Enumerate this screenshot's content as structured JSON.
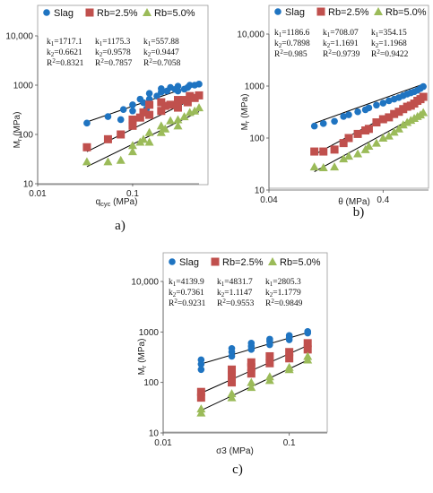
{
  "colors": {
    "slag": "#1f74c1",
    "rb25": "#c0504d",
    "rb50": "#9bbb59",
    "fit": "#000000"
  },
  "legend": [
    "Slag",
    "Rb=2.5%",
    "Rb=5.0%"
  ],
  "chart_data": [
    {
      "type": "scatter",
      "caption": "a)",
      "xlabel": "q_cyc (MPa)",
      "ylabel": "M_r (MPa)",
      "xscale": "log",
      "yscale": "log",
      "xlim": [
        0.01,
        0.5
      ],
      "ylim": [
        10,
        10000
      ],
      "xticks": [
        {
          "v": 0.01,
          "t": "0.01"
        },
        {
          "v": 0.1,
          "t": "0.1"
        }
      ],
      "yticks": [
        {
          "v": 10,
          "t": "10"
        },
        {
          "v": 100,
          "t": "100"
        },
        {
          "v": 1000,
          "t": "1000"
        },
        {
          "v": 10000,
          "t": "10,000"
        }
      ],
      "coefficients": [
        [
          "k1=1717.1",
          "k2=0.6621",
          "R2=0.8321"
        ],
        [
          "k1=1175.3",
          "k2=0.9578",
          "R2=0.7857"
        ],
        [
          "k1=557.88",
          "k2=0.9447",
          "R2=0.7058"
        ]
      ],
      "series": [
        {
          "name": "Slag",
          "marker": "circle",
          "fit": {
            "k1": 1717.1,
            "k2": 0.6621
          },
          "x": [
            0.033,
            0.055,
            0.075,
            0.1,
            0.1,
            0.12,
            0.15,
            0.15,
            0.2,
            0.2,
            0.25,
            0.3,
            0.3,
            0.35,
            0.4,
            0.45,
            0.08,
            0.13,
            0.18,
            0.28,
            0.38,
            0.5,
            0.23,
            0.14
          ],
          "y": [
            170,
            230,
            200,
            400,
            300,
            520,
            520,
            680,
            720,
            850,
            900,
            950,
            760,
            830,
            1000,
            1000,
            320,
            440,
            600,
            820,
            900,
            1050,
            760,
            330
          ]
        },
        {
          "name": "Rb=2.5%",
          "marker": "square",
          "fit": {
            "k1": 1175.3,
            "k2": 0.9578
          },
          "x": [
            0.033,
            0.055,
            0.075,
            0.1,
            0.1,
            0.13,
            0.15,
            0.15,
            0.2,
            0.2,
            0.25,
            0.3,
            0.3,
            0.35,
            0.4,
            0.45,
            0.5,
            0.12,
            0.22,
            0.38
          ],
          "y": [
            55,
            80,
            100,
            200,
            150,
            280,
            250,
            400,
            300,
            450,
            400,
            500,
            350,
            500,
            600,
            550,
            620,
            220,
            380,
            450
          ]
        },
        {
          "name": "Rb=5.0%",
          "marker": "triangle",
          "fit": {
            "k1": 557.88,
            "k2": 0.9447
          },
          "x": [
            0.033,
            0.055,
            0.075,
            0.1,
            0.1,
            0.13,
            0.15,
            0.15,
            0.2,
            0.2,
            0.25,
            0.3,
            0.3,
            0.35,
            0.4,
            0.45,
            0.5,
            0.12,
            0.22
          ],
          "y": [
            28,
            28,
            30,
            60,
            45,
            80,
            110,
            70,
            150,
            110,
            190,
            200,
            150,
            230,
            280,
            300,
            350,
            70,
            130
          ]
        }
      ]
    },
    {
      "type": "scatter",
      "caption": "b)",
      "xlabel": "θ (MPa)",
      "ylabel": "M_r (MPa)",
      "xscale": "log",
      "yscale": "log",
      "xlim": [
        0.04,
        1.0
      ],
      "ylim": [
        10,
        10000
      ],
      "xticks": [
        {
          "v": 0.04,
          "t": "0.04"
        },
        {
          "v": 0.4,
          "t": "0.4"
        }
      ],
      "yticks": [
        {
          "v": 10,
          "t": "10"
        },
        {
          "v": 100,
          "t": "100"
        },
        {
          "v": 1000,
          "t": "1000"
        },
        {
          "v": 10000,
          "t": "10,000"
        }
      ],
      "coefficients": [
        [
          "k1=1186.6",
          "k2=0.7898",
          "R2=0.985"
        ],
        [
          "k1=708.07",
          "k2=1.1691",
          "R2=0.9739"
        ],
        [
          "k1=354.15",
          "k2=1.1968",
          "R2=0.9422"
        ]
      ],
      "series": [
        {
          "name": "Slag",
          "marker": "circle",
          "fit": {
            "k1": 1186.6,
            "k2": 0.7898
          },
          "x": [
            0.1,
            0.12,
            0.15,
            0.18,
            0.2,
            0.24,
            0.28,
            0.3,
            0.35,
            0.4,
            0.45,
            0.5,
            0.55,
            0.6,
            0.65,
            0.7,
            0.75,
            0.8,
            0.85,
            0.9
          ],
          "y": [
            170,
            190,
            210,
            260,
            280,
            320,
            350,
            380,
            430,
            470,
            520,
            560,
            600,
            650,
            700,
            740,
            780,
            830,
            900,
            980
          ]
        },
        {
          "name": "Rb=2.5%",
          "marker": "square",
          "fit": {
            "k1": 708.07,
            "k2": 1.1691
          },
          "x": [
            0.1,
            0.12,
            0.15,
            0.18,
            0.2,
            0.24,
            0.28,
            0.3,
            0.35,
            0.4,
            0.45,
            0.5,
            0.55,
            0.6,
            0.65,
            0.7,
            0.75,
            0.8,
            0.85,
            0.9
          ],
          "y": [
            55,
            55,
            60,
            80,
            100,
            120,
            140,
            150,
            200,
            230,
            250,
            290,
            320,
            360,
            400,
            420,
            460,
            520,
            560,
            620
          ]
        },
        {
          "name": "Rb=5.0%",
          "marker": "triangle",
          "fit": {
            "k1": 354.15,
            "k2": 1.1968
          },
          "x": [
            0.1,
            0.12,
            0.15,
            0.18,
            0.2,
            0.24,
            0.28,
            0.3,
            0.35,
            0.4,
            0.45,
            0.5,
            0.55,
            0.6,
            0.65,
            0.7,
            0.75,
            0.8,
            0.85,
            0.9
          ],
          "y": [
            28,
            27,
            28,
            40,
            45,
            50,
            60,
            70,
            80,
            100,
            110,
            130,
            150,
            180,
            200,
            220,
            240,
            260,
            280,
            310
          ]
        }
      ]
    },
    {
      "type": "scatter",
      "caption": "c)",
      "xlabel": "σ3 (MPa)",
      "ylabel": "M_r (MPa)",
      "xscale": "log",
      "yscale": "log",
      "xlim": [
        0.01,
        0.2
      ],
      "ylim": [
        10,
        10000
      ],
      "xticks": [
        {
          "v": 0.01,
          "t": "0.01"
        },
        {
          "v": 0.1,
          "t": "0.1"
        }
      ],
      "yticks": [
        {
          "v": 10,
          "t": "10"
        },
        {
          "v": 100,
          "t": "100"
        },
        {
          "v": 1000,
          "t": "1000"
        },
        {
          "v": 10000,
          "t": "10,000"
        }
      ],
      "coefficients": [
        [
          "k1=4139.9",
          "k2=0.7361",
          "R2=0.9231"
        ],
        [
          "k1=4831.7",
          "k2=1.1147",
          "R2=0.9553"
        ],
        [
          "k1=2805.3",
          "k2=1.1779",
          "R2=0.9849"
        ]
      ],
      "series": [
        {
          "name": "Slag",
          "marker": "circle",
          "fit": {
            "k1": 4139.9,
            "k2": 0.7361
          },
          "x": [
            0.02,
            0.02,
            0.02,
            0.035,
            0.035,
            0.035,
            0.05,
            0.05,
            0.05,
            0.07,
            0.07,
            0.07,
            0.1,
            0.1,
            0.1,
            0.14,
            0.14
          ],
          "y": [
            180,
            230,
            280,
            330,
            400,
            470,
            450,
            520,
            600,
            560,
            650,
            720,
            700,
            780,
            850,
            950,
            1020
          ]
        },
        {
          "name": "Rb=2.5%",
          "marker": "square",
          "fit": {
            "k1": 4831.7,
            "k2": 1.1147
          },
          "x": [
            0.02,
            0.02,
            0.035,
            0.035,
            0.035,
            0.05,
            0.05,
            0.05,
            0.07,
            0.07,
            0.1,
            0.1,
            0.14,
            0.14
          ],
          "y": [
            50,
            65,
            100,
            140,
            180,
            150,
            200,
            250,
            240,
            330,
            300,
            400,
            450,
            600
          ]
        },
        {
          "name": "Rb=5.0%",
          "marker": "triangle",
          "fit": {
            "k1": 2805.3,
            "k2": 1.1779
          },
          "x": [
            0.02,
            0.02,
            0.035,
            0.035,
            0.05,
            0.05,
            0.07,
            0.07,
            0.1,
            0.1,
            0.14,
            0.14
          ],
          "y": [
            25,
            30,
            50,
            60,
            80,
            100,
            110,
            130,
            180,
            200,
            280,
            330
          ]
        }
      ]
    }
  ]
}
